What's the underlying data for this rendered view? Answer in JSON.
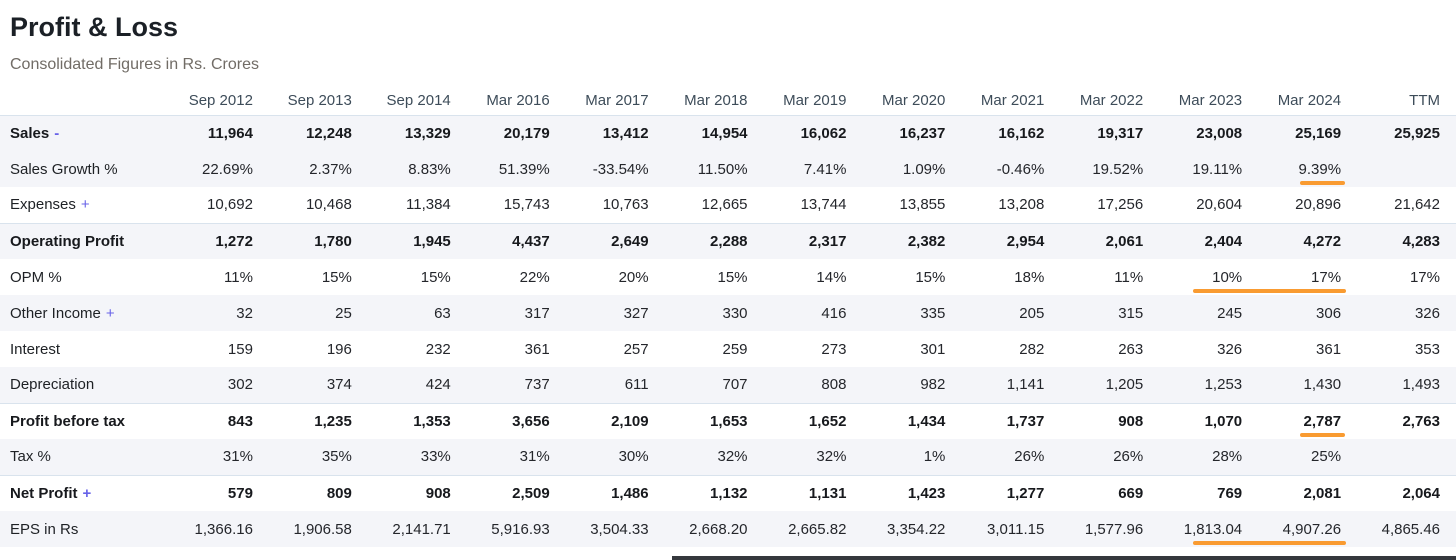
{
  "page": {
    "title": "Profit & Loss",
    "subtitle": "Consolidated Figures in Rs. Crores"
  },
  "table": {
    "columns": [
      "Sep 2012",
      "Sep 2013",
      "Sep 2014",
      "Mar 2016",
      "Mar 2017",
      "Mar 2018",
      "Mar 2019",
      "Mar 2020",
      "Mar 2021",
      "Mar 2022",
      "Mar 2023",
      "Mar 2024",
      "TTM"
    ],
    "rows": [
      {
        "label": "Sales",
        "suffix": "-",
        "bold": true,
        "striped": true,
        "section_border": false,
        "values": [
          "11,964",
          "12,248",
          "13,329",
          "20,179",
          "13,412",
          "14,954",
          "16,062",
          "16,237",
          "16,162",
          "19,317",
          "23,008",
          "25,169",
          "25,925"
        ]
      },
      {
        "label": "Sales Growth %",
        "suffix": "",
        "bold": false,
        "striped": true,
        "section_border": false,
        "values": [
          "22.69%",
          "2.37%",
          "8.83%",
          "51.39%",
          "-33.54%",
          "11.50%",
          "7.41%",
          "1.09%",
          "-0.46%",
          "19.52%",
          "19.11%",
          "9.39%",
          ""
        ],
        "highlights": {
          "11": "single"
        }
      },
      {
        "label": "Expenses",
        "suffix": "+",
        "bold": false,
        "striped": false,
        "section_border": false,
        "values": [
          "10,692",
          "10,468",
          "11,384",
          "15,743",
          "10,763",
          "12,665",
          "13,744",
          "13,855",
          "13,208",
          "17,256",
          "20,604",
          "20,896",
          "21,642"
        ]
      },
      {
        "label": "Operating Profit",
        "suffix": "",
        "bold": true,
        "striped": true,
        "section_border": true,
        "values": [
          "1,272",
          "1,780",
          "1,945",
          "4,437",
          "2,649",
          "2,288",
          "2,317",
          "2,382",
          "2,954",
          "2,061",
          "2,404",
          "4,272",
          "4,283"
        ]
      },
      {
        "label": "OPM %",
        "suffix": "",
        "bold": false,
        "striped": false,
        "section_border": false,
        "values": [
          "11%",
          "15%",
          "15%",
          "22%",
          "20%",
          "15%",
          "14%",
          "15%",
          "18%",
          "11%",
          "10%",
          "17%",
          "17%"
        ],
        "highlights": {
          "10": "start",
          "11": "cont"
        }
      },
      {
        "label": "Other Income",
        "suffix": "+",
        "bold": false,
        "striped": true,
        "section_border": false,
        "values": [
          "32",
          "25",
          "63",
          "317",
          "327",
          "330",
          "416",
          "335",
          "205",
          "315",
          "245",
          "306",
          "326"
        ]
      },
      {
        "label": "Interest",
        "suffix": "",
        "bold": false,
        "striped": false,
        "section_border": false,
        "values": [
          "159",
          "196",
          "232",
          "361",
          "257",
          "259",
          "273",
          "301",
          "282",
          "263",
          "326",
          "361",
          "353"
        ]
      },
      {
        "label": "Depreciation",
        "suffix": "",
        "bold": false,
        "striped": true,
        "section_border": false,
        "values": [
          "302",
          "374",
          "424",
          "737",
          "611",
          "707",
          "808",
          "982",
          "1,141",
          "1,205",
          "1,253",
          "1,430",
          "1,493"
        ]
      },
      {
        "label": "Profit before tax",
        "suffix": "",
        "bold": true,
        "striped": false,
        "section_border": true,
        "values": [
          "843",
          "1,235",
          "1,353",
          "3,656",
          "2,109",
          "1,653",
          "1,652",
          "1,434",
          "1,737",
          "908",
          "1,070",
          "2,787",
          "2,763"
        ],
        "highlights": {
          "11": "single"
        }
      },
      {
        "label": "Tax %",
        "suffix": "",
        "bold": false,
        "striped": true,
        "section_border": false,
        "values": [
          "31%",
          "35%",
          "33%",
          "31%",
          "30%",
          "32%",
          "32%",
          "1%",
          "26%",
          "26%",
          "28%",
          "25%",
          ""
        ]
      },
      {
        "label": "Net Profit",
        "suffix": "+",
        "bold": true,
        "striped": false,
        "section_border": true,
        "values": [
          "579",
          "809",
          "908",
          "2,509",
          "1,486",
          "1,132",
          "1,131",
          "1,423",
          "1,277",
          "669",
          "769",
          "2,081",
          "2,064"
        ]
      },
      {
        "label": "EPS in Rs",
        "suffix": "",
        "bold": false,
        "striped": true,
        "section_border": false,
        "values": [
          "1,366.16",
          "1,906.58",
          "2,141.71",
          "5,916.93",
          "3,504.33",
          "2,668.20",
          "2,665.82",
          "3,354.22",
          "3,011.15",
          "1,577.96",
          "1,813.04",
          "4,907.26",
          "4,865.46"
        ],
        "highlights": {
          "10": "start",
          "11": "cont"
        }
      }
    ]
  },
  "colors": {
    "accent_orange": "#f99b31",
    "toggle_purple": "#6762e8",
    "row_stripe": "#f4f5f9",
    "divider": "#d9e3ed"
  }
}
